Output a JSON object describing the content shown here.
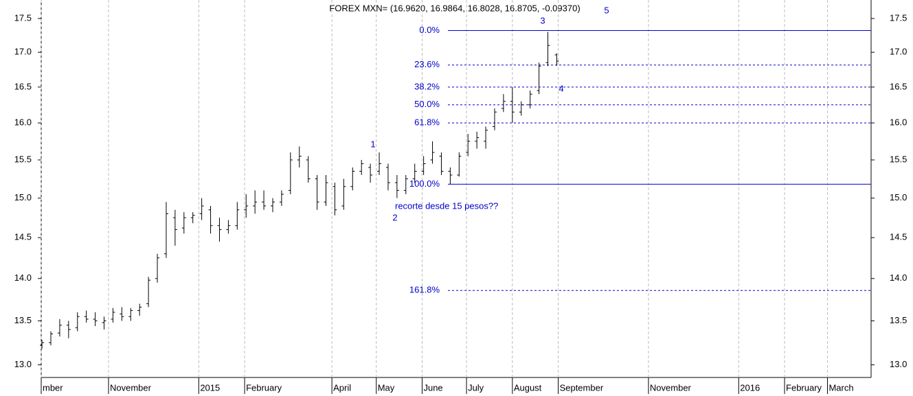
{
  "chart_data": {
    "type": "ohlc",
    "title": "FOREX MXN= (16.9620, 16.9864, 16.8028, 16.8705, -0.09370)",
    "x": [
      16,
      22,
      28,
      34,
      40,
      46,
      52,
      58,
      64,
      70,
      76,
      82,
      88,
      94,
      100,
      106,
      112,
      118,
      124,
      130,
      136,
      142,
      148,
      154,
      160,
      166,
      172,
      178,
      184,
      190,
      196,
      202,
      208,
      214,
      220,
      226,
      232,
      238,
      244,
      250,
      256,
      262,
      268,
      274,
      280,
      286,
      292,
      298,
      304,
      310,
      316,
      322,
      328,
      334,
      340,
      346,
      352,
      358,
      364
    ],
    "open": [
      13.22,
      13.25,
      13.36,
      13.45,
      13.42,
      13.55,
      13.52,
      13.48,
      13.52,
      13.58,
      13.55,
      13.62,
      13.7,
      14.0,
      14.3,
      14.75,
      14.62,
      14.75,
      14.8,
      14.85,
      14.65,
      14.6,
      14.65,
      14.85,
      14.9,
      14.95,
      14.9,
      14.95,
      15.1,
      15.5,
      15.5,
      15.25,
      14.95,
      15.15,
      14.9,
      15.15,
      15.35,
      15.4,
      15.35,
      15.4,
      15.2,
      15.1,
      15.25,
      15.35,
      15.5,
      15.55,
      15.35,
      15.3,
      15.6,
      15.75,
      15.75,
      15.95,
      16.2,
      16.3,
      16.15,
      16.25,
      16.45,
      16.85,
      16.962
    ],
    "high": [
      13.28,
      13.38,
      13.52,
      13.5,
      13.6,
      13.62,
      13.6,
      13.55,
      13.65,
      13.66,
      13.65,
      13.7,
      14.02,
      14.3,
      14.95,
      14.85,
      14.82,
      14.82,
      15.0,
      14.9,
      14.75,
      14.72,
      14.95,
      15.05,
      15.1,
      15.1,
      15.0,
      15.1,
      15.6,
      15.68,
      15.55,
      15.3,
      15.3,
      15.2,
      15.25,
      15.4,
      15.5,
      15.45,
      15.6,
      15.45,
      15.3,
      15.3,
      15.45,
      15.55,
      15.75,
      15.6,
      15.4,
      15.6,
      15.85,
      15.88,
      15.95,
      16.2,
      16.4,
      16.5,
      16.3,
      16.45,
      16.85,
      17.3,
      16.9864
    ],
    "low": [
      13.18,
      13.22,
      13.32,
      13.3,
      13.38,
      13.48,
      13.44,
      13.4,
      13.48,
      13.5,
      13.5,
      13.56,
      13.66,
      13.95,
      14.25,
      14.4,
      14.55,
      14.68,
      14.72,
      14.55,
      14.45,
      14.55,
      14.6,
      14.75,
      14.8,
      14.85,
      14.82,
      14.9,
      15.05,
      15.4,
      15.2,
      14.85,
      14.9,
      14.78,
      14.85,
      15.1,
      15.3,
      15.2,
      15.3,
      15.1,
      15.0,
      15.05,
      15.2,
      15.3,
      15.45,
      15.3,
      15.18,
      15.28,
      15.55,
      15.65,
      15.65,
      15.9,
      16.15,
      16.0,
      16.1,
      16.2,
      16.4,
      16.8,
      16.8028
    ],
    "close": [
      13.25,
      13.35,
      13.45,
      13.4,
      13.55,
      13.52,
      13.5,
      13.5,
      13.6,
      13.55,
      13.62,
      13.66,
      13.98,
      14.25,
      14.8,
      14.6,
      14.75,
      14.78,
      14.9,
      14.65,
      14.6,
      14.65,
      14.85,
      14.9,
      14.95,
      14.9,
      14.95,
      15.05,
      15.5,
      15.55,
      15.25,
      14.95,
      15.2,
      14.85,
      15.15,
      15.35,
      15.45,
      15.3,
      15.45,
      15.2,
      15.1,
      15.25,
      15.35,
      15.45,
      15.6,
      15.35,
      15.3,
      15.55,
      15.75,
      15.8,
      15.9,
      16.15,
      16.3,
      16.15,
      16.25,
      16.4,
      16.8,
      17.1,
      16.8705
    ],
    "color": "#000000",
    "log": true,
    "xlim": [
      15.5,
      576.5
    ],
    "xticks": [
      {
        "value": 15.5,
        "label": "mber"
      },
      {
        "value": 61,
        "label": "November"
      },
      {
        "value": 122,
        "label": "2015"
      },
      {
        "value": 153,
        "label": "February"
      },
      {
        "value": 212,
        "label": "April"
      },
      {
        "value": 242,
        "label": "May"
      },
      {
        "value": 273,
        "label": "June"
      },
      {
        "value": 303,
        "label": "July"
      },
      {
        "value": 334,
        "label": "August"
      },
      {
        "value": 365,
        "label": "September"
      },
      {
        "value": 426,
        "label": "November"
      },
      {
        "value": 487,
        "label": "2016"
      },
      {
        "value": 518,
        "label": "February"
      },
      {
        "value": 547,
        "label": "March"
      }
    ],
    "ylim": [
      12.86,
      17.78
    ],
    "yticks": [
      {
        "value": 13,
        "label": "13.0"
      },
      13.5,
      {
        "value": 14,
        "label": "14.0"
      },
      14.5,
      {
        "value": 15,
        "label": "15.0"
      },
      15.5,
      {
        "value": 16,
        "label": "16.0"
      },
      16.5,
      {
        "value": 17,
        "label": "17.0"
      },
      17.5
    ],
    "grid": true,
    "fib_color": "#0000cc",
    "fib_levels": [
      {
        "label": "0.0%",
        "price": 17.32,
        "style": "solid"
      },
      {
        "label": "23.6%",
        "price": 16.815,
        "style": "dashed"
      },
      {
        "label": "38.2%",
        "price": 16.5,
        "style": "dashed"
      },
      {
        "label": "50.0%",
        "price": 16.25,
        "style": "dashed"
      },
      {
        "label": "61.8%",
        "price": 16.0,
        "style": "dashed"
      },
      {
        "label": "100.0%",
        "price": 15.18,
        "style": "solid"
      },
      {
        "label": "161.8%",
        "price": 13.857,
        "style": "dashed"
      }
    ],
    "annotations": [
      "1",
      "2",
      "3",
      "4",
      "5",
      "recorte desde 15 pesos??"
    ]
  }
}
